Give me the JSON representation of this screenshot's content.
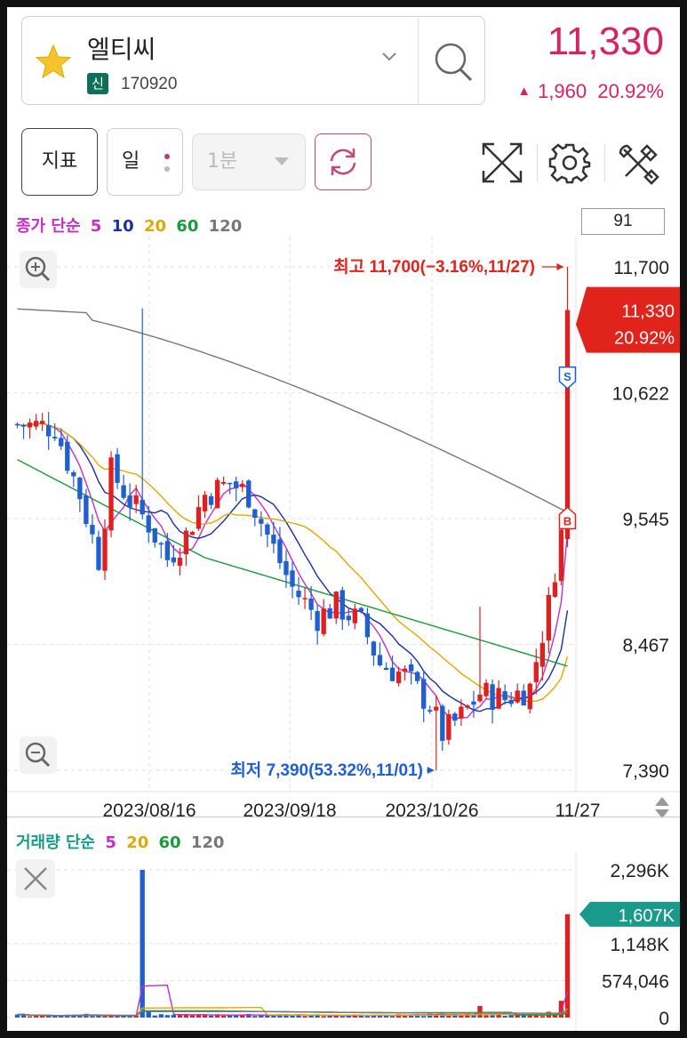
{
  "header": {
    "stock_name": "엘티씨",
    "badge": "신",
    "code": "170920",
    "price": "11,330",
    "change_arrow": "▲",
    "change_amount": "1,960",
    "change_pct": "20.92%",
    "accent_color": "#d7235f"
  },
  "toolbar": {
    "indicator_label": "지표",
    "period_label": "일",
    "minute_label": "1분"
  },
  "ma_legend": {
    "label": "종가 단순",
    "periods": [
      "5",
      "10",
      "20",
      "60",
      "120"
    ],
    "colors": [
      "#c42fc8",
      "#1b2fa6",
      "#e0a800",
      "#1a9a3a",
      "#777777"
    ]
  },
  "count_box": "91",
  "vol_legend": {
    "label": "거래량 단순",
    "periods": [
      "5",
      "20",
      "60",
      "120"
    ],
    "colors": [
      "#c42fc8",
      "#e0a800",
      "#1a9a3a",
      "#777777"
    ]
  },
  "chart_data": [
    {
      "type": "candlestick",
      "up_color": "#e02020",
      "down_color": "#1f5fd0",
      "yticks": [
        "11,700",
        "10,622",
        "9,545",
        "8,467",
        "7,390"
      ],
      "ylim": [
        7390,
        11700
      ],
      "xticks": [
        "2023/08/16",
        "2023/09/18",
        "2023/10/26",
        "11/27"
      ],
      "current_price_label": "11,330",
      "current_pct_label": "20.92%",
      "high_annotation": "최고 11,700(−3.16%,11/27)",
      "low_annotation": "최저 7,390(53.32%,11/01)",
      "marker_s": "S",
      "marker_b": "B"
    },
    {
      "type": "bar",
      "title": "거래량",
      "yticks": [
        "2,296K",
        "1,148K",
        "574,046",
        "0"
      ],
      "ylim": [
        0,
        2296000
      ],
      "current_volume_label": "1,607K"
    }
  ]
}
